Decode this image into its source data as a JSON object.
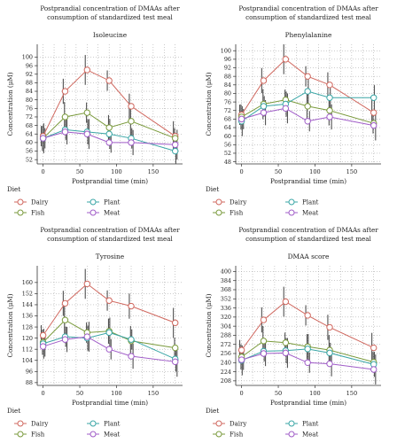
{
  "colors": {
    "Dairy": "#d0685f",
    "Fish": "#7a9a3c",
    "Plant": "#3aa6a6",
    "Meat": "#a05cc8",
    "errorbar": "#333333",
    "grid": "#9a9a9a",
    "axis": "#333333"
  },
  "chart_data": [
    {
      "type": "line",
      "title": "Postprandial concentration of DMAAs after consumption of standardized test meal",
      "subtitle": "Isoleucine",
      "xlabel": "Postprandial time (min)",
      "ylabel": "Concentration (μM)",
      "xlim": [
        -8,
        190
      ],
      "xticks": [
        0,
        50,
        100,
        150
      ],
      "ylim": [
        50,
        106
      ],
      "yticks": [
        52,
        56,
        60,
        64,
        68,
        72,
        76,
        80,
        84,
        88,
        92,
        96,
        100
      ],
      "x": [
        0,
        30,
        60,
        90,
        120,
        180
      ],
      "series": [
        {
          "name": "Dairy",
          "values": [
            63,
            84,
            94,
            89,
            77,
            63
          ]
        },
        {
          "name": "Fish",
          "values": [
            62,
            72,
            74,
            67,
            70,
            62
          ]
        },
        {
          "name": "Plant",
          "values": [
            62,
            66,
            65,
            64,
            62,
            56
          ]
        },
        {
          "name": "Meat",
          "values": [
            62,
            65,
            64,
            60,
            60,
            59
          ]
        }
      ],
      "grid": true,
      "legend_title": "Diet",
      "legend": [
        "Dairy",
        "Fish",
        "Plant",
        "Meat"
      ]
    },
    {
      "type": "line",
      "title": "Postprandial concentration of DMAAs after consumption of standardized test meal",
      "subtitle": "Phenylalanine",
      "xlabel": "Postprandial time (min)",
      "ylabel": "Concentration (μM)",
      "xlim": [
        -8,
        190
      ],
      "xticks": [
        0,
        50,
        100,
        150
      ],
      "ylim": [
        47,
        103
      ],
      "yticks": [
        48,
        52,
        56,
        60,
        64,
        68,
        72,
        76,
        80,
        84,
        88,
        92,
        96,
        100
      ],
      "x": [
        0,
        30,
        60,
        90,
        120,
        180
      ],
      "series": [
        {
          "name": "Dairy",
          "values": [
            70,
            86,
            96,
            88,
            84,
            71
          ]
        },
        {
          "name": "Fish",
          "values": [
            69,
            75,
            77,
            74,
            72,
            66
          ]
        },
        {
          "name": "Plant",
          "values": [
            67,
            74,
            75,
            81,
            78,
            78
          ]
        },
        {
          "name": "Meat",
          "values": [
            68,
            71,
            73,
            67,
            69,
            65
          ]
        }
      ],
      "grid": true,
      "legend_title": "Diet",
      "legend": [
        "Dairy",
        "Fish",
        "Plant",
        "Meat"
      ]
    },
    {
      "type": "line",
      "title": "Postprandial concentration of DMAAs after consumption of standardized test meal",
      "subtitle": "Tyrosine",
      "xlabel": "Postprandial time (min)",
      "ylabel": "Concentration (μM)",
      "xlim": [
        -8,
        190
      ],
      "xticks": [
        0,
        50,
        100,
        150
      ],
      "ylim": [
        86,
        172
      ],
      "yticks": [
        88,
        96,
        104,
        112,
        120,
        128,
        136,
        144,
        152,
        160
      ],
      "x": [
        0,
        30,
        60,
        90,
        120,
        180
      ],
      "series": [
        {
          "name": "Dairy",
          "values": [
            122,
            145,
            159,
            147,
            143,
            131
          ]
        },
        {
          "name": "Fish",
          "values": [
            117,
            133,
            124,
            125,
            118,
            113
          ]
        },
        {
          "name": "Plant",
          "values": [
            116,
            121,
            120,
            124,
            119,
            105
          ]
        },
        {
          "name": "Meat",
          "values": [
            114,
            119,
            121,
            112,
            107,
            103
          ]
        }
      ],
      "grid": true,
      "legend_title": "Diet",
      "legend": [
        "Dairy",
        "Fish",
        "Plant",
        "Meat"
      ]
    },
    {
      "type": "line",
      "title": "Postprandial concentration of DMAAs after consumption of standardized test meal",
      "subtitle": "DMAA score",
      "xlabel": "Postprandial time (min)",
      "ylabel": "Concentration (μM)",
      "xlim": [
        -8,
        190
      ],
      "xticks": [
        0,
        50,
        100,
        150
      ],
      "ylim": [
        200,
        410
      ],
      "yticks": [
        208,
        224,
        240,
        256,
        272,
        288,
        304,
        320,
        336,
        352,
        368,
        384,
        400
      ],
      "x": [
        0,
        30,
        60,
        90,
        120,
        180
      ],
      "series": [
        {
          "name": "Dairy",
          "values": [
            262,
            315,
            347,
            323,
            302,
            266
          ]
        },
        {
          "name": "Fish",
          "values": [
            250,
            278,
            275,
            268,
            262,
            241
          ]
        },
        {
          "name": "Plant",
          "values": [
            244,
            260,
            261,
            264,
            257,
            237
          ]
        },
        {
          "name": "Meat",
          "values": [
            245,
            256,
            257,
            240,
            238,
            228
          ]
        }
      ],
      "grid": true,
      "legend_title": "Diet",
      "legend": [
        "Dairy",
        "Fish",
        "Plant",
        "Meat"
      ]
    }
  ]
}
